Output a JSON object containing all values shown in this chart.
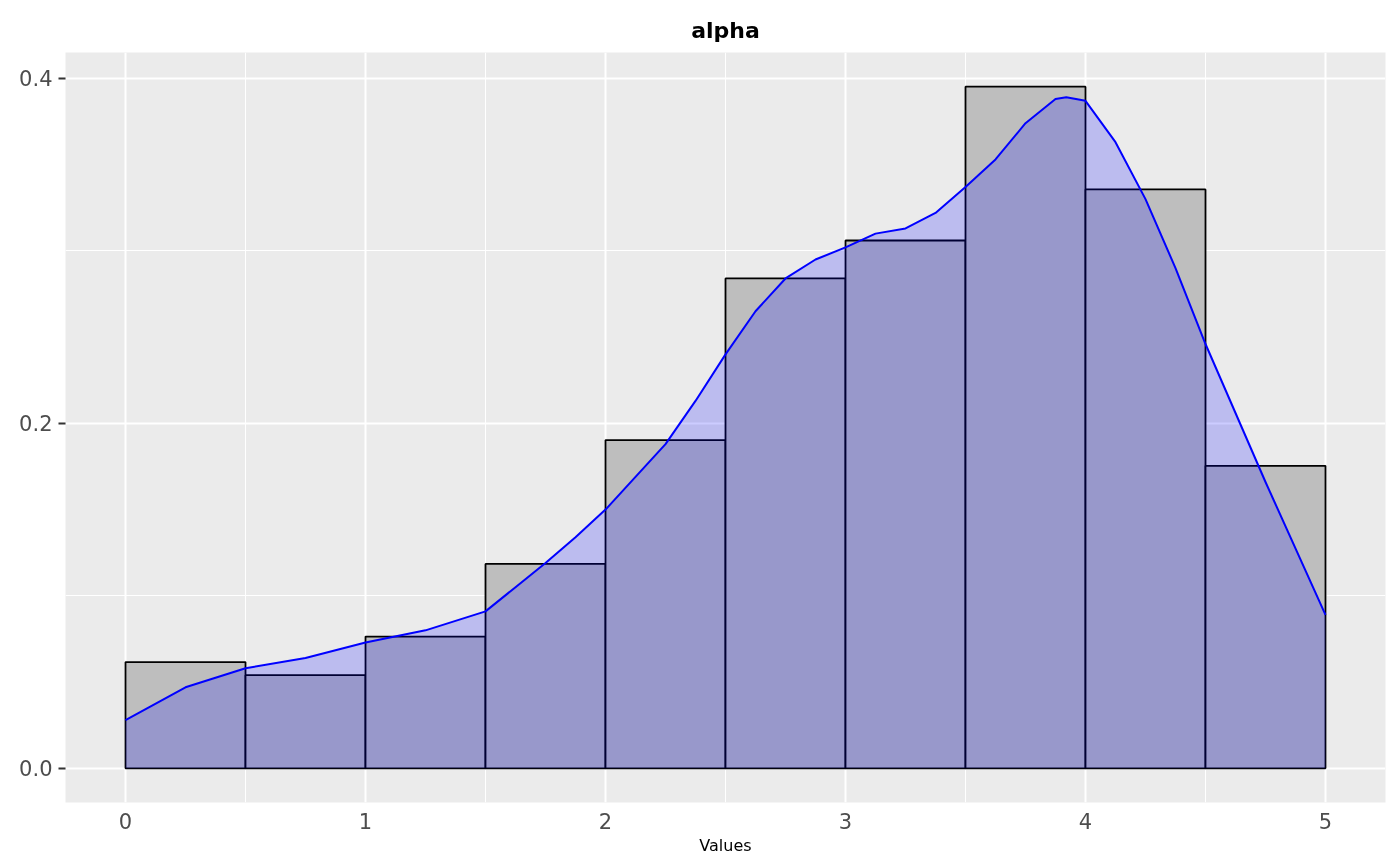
{
  "chart_data": {
    "type": "histogram",
    "title": "alpha",
    "xlabel": "Values",
    "xlim": [
      -0.25,
      5.25
    ],
    "ylim": [
      -0.0198,
      0.415
    ],
    "xticks": [
      0,
      1,
      2,
      3,
      4,
      5
    ],
    "yticks": [
      {
        "value": 0,
        "label": "0.0"
      },
      {
        "value": 0.2,
        "label": "0.2"
      },
      {
        "value": 0.4,
        "label": "0.4"
      }
    ],
    "grid": true,
    "series": [
      {
        "color": "#bebebe",
        "bins": [
          0,
          0.5,
          1,
          1.5,
          2,
          2.5,
          3,
          3.5,
          4,
          4.5,
          5
        ],
        "values": [
          0.0616,
          0.054,
          0.0764,
          0.1185,
          0.1903,
          0.284,
          0.306,
          0.3952,
          0.3356,
          0.1754
        ]
      },
      {
        "type": "area",
        "color": "#0000ff",
        "x": [
          0,
          0.25,
          0.5,
          0.75,
          1,
          1.25,
          1.5,
          1.625,
          1.75,
          1.875,
          2,
          2.125,
          2.25,
          2.375,
          2.5,
          2.625,
          2.75,
          2.875,
          3,
          3.125,
          3.25,
          3.375,
          3.5,
          3.625,
          3.75,
          3.875,
          3.92,
          4,
          4.125,
          4.25,
          4.375,
          4.5,
          4.75,
          5
        ],
        "values": [
          0.028,
          0.047,
          0.058,
          0.064,
          0.073,
          0.08,
          0.091,
          0.105,
          0.119,
          0.134,
          0.15,
          0.169,
          0.188,
          0.213,
          0.24,
          0.265,
          0.284,
          0.295,
          0.302,
          0.31,
          0.313,
          0.322,
          0.337,
          0.353,
          0.374,
          0.388,
          0.389,
          0.387,
          0.363,
          0.33,
          0.29,
          0.246,
          0.166,
          0.089
        ]
      }
    ]
  }
}
